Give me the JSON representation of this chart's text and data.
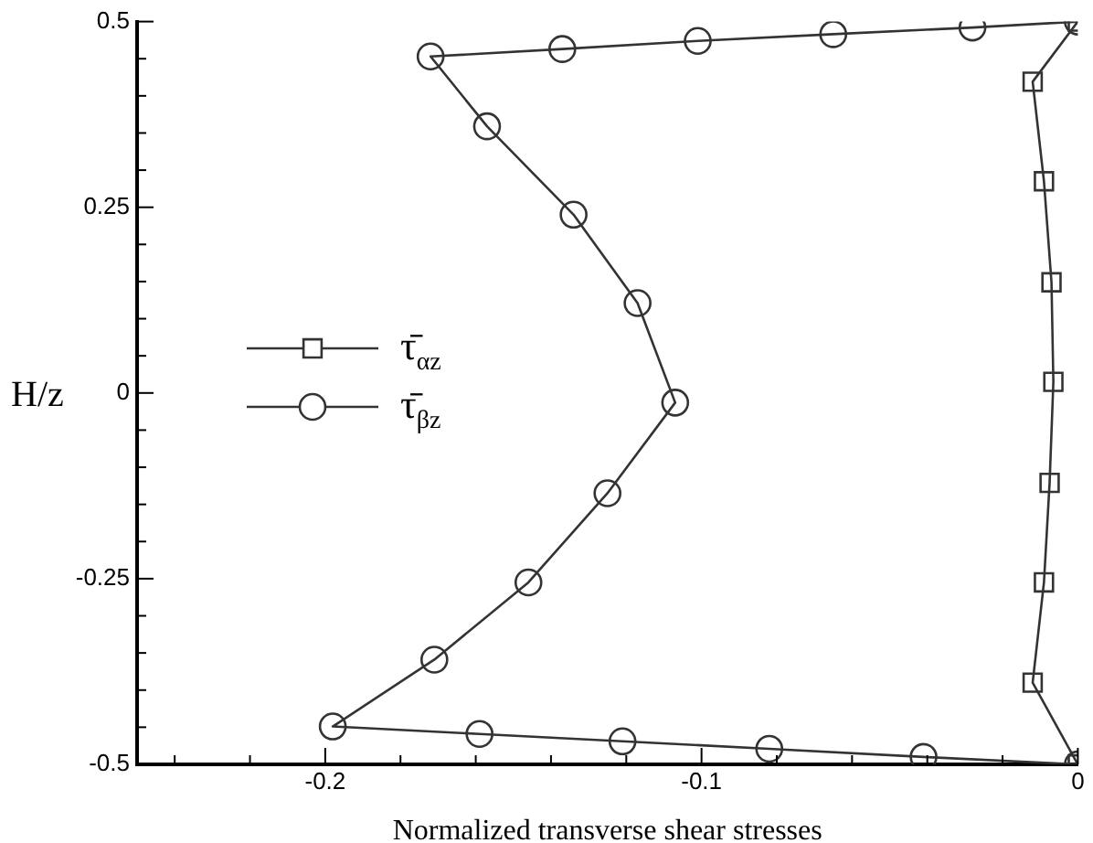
{
  "chart_data": {
    "type": "line",
    "xlabel": "Normalized transverse shear stresses",
    "ylabel": "H/z",
    "xlim": [
      -0.25,
      0
    ],
    "ylim": [
      -0.5,
      0.5
    ],
    "xticks": [
      {
        "value": -0.24,
        "label": null
      },
      {
        "value": -0.22,
        "label": null
      },
      -0.2,
      {
        "value": -0.18,
        "label": null
      },
      {
        "value": -0.16,
        "label": null
      },
      {
        "value": -0.14,
        "label": null
      },
      {
        "value": -0.12,
        "label": null
      },
      -0.1,
      {
        "value": -0.08,
        "label": null
      },
      {
        "value": -0.06,
        "label": null
      },
      {
        "value": -0.04,
        "label": null
      },
      {
        "value": -0.02,
        "label": null
      },
      0
    ],
    "yticks": [
      -0.5,
      {
        "value": -0.45,
        "label": null
      },
      {
        "value": -0.4,
        "label": null
      },
      {
        "value": -0.35,
        "label": null
      },
      {
        "value": -0.3,
        "label": null
      },
      -0.25,
      {
        "value": -0.2,
        "label": null
      },
      {
        "value": -0.15,
        "label": null
      },
      {
        "value": -0.1,
        "label": null
      },
      {
        "value": -0.05,
        "label": null
      },
      0,
      {
        "value": 0.05,
        "label": null
      },
      {
        "value": 0.1,
        "label": null
      },
      {
        "value": 0.15,
        "label": null
      },
      {
        "value": 0.2,
        "label": null
      },
      0.25,
      {
        "value": 0.3,
        "label": null
      },
      {
        "value": 0.35,
        "label": null
      },
      {
        "value": 0.4,
        "label": null
      },
      {
        "value": 0.45,
        "label": null
      },
      0.5
    ],
    "grid": false,
    "legend": "left",
    "line_style": "solid",
    "series": [
      {
        "name": "τ̄$_{αz}$",
        "color": "#333333",
        "marker": "square",
        "x": [
          0,
          -0.012,
          -0.009,
          -0.007,
          -0.0065,
          -0.0075,
          -0.009,
          -0.012,
          0
        ],
        "values": [
          0.5,
          0.419,
          0.285,
          0.149,
          0.015,
          -0.121,
          -0.255,
          -0.39,
          -0.5
        ]
      },
      {
        "name": "τ̄$_{βz}$",
        "color": "#333333",
        "marker": "circle",
        "x": [
          0,
          -0.028,
          -0.065,
          -0.101,
          -0.137,
          -0.172,
          -0.157,
          -0.134,
          -0.117,
          -0.107,
          -0.125,
          -0.146,
          -0.171,
          -0.198,
          -0.159,
          -0.121,
          -0.082,
          -0.041,
          0
        ],
        "values": [
          0.5,
          0.492,
          0.483,
          0.474,
          0.463,
          0.453,
          0.359,
          0.24,
          0.121,
          -0.013,
          -0.135,
          -0.255,
          -0.359,
          -0.449,
          -0.459,
          -0.469,
          -0.479,
          -0.49,
          -0.5
        ]
      }
    ]
  }
}
